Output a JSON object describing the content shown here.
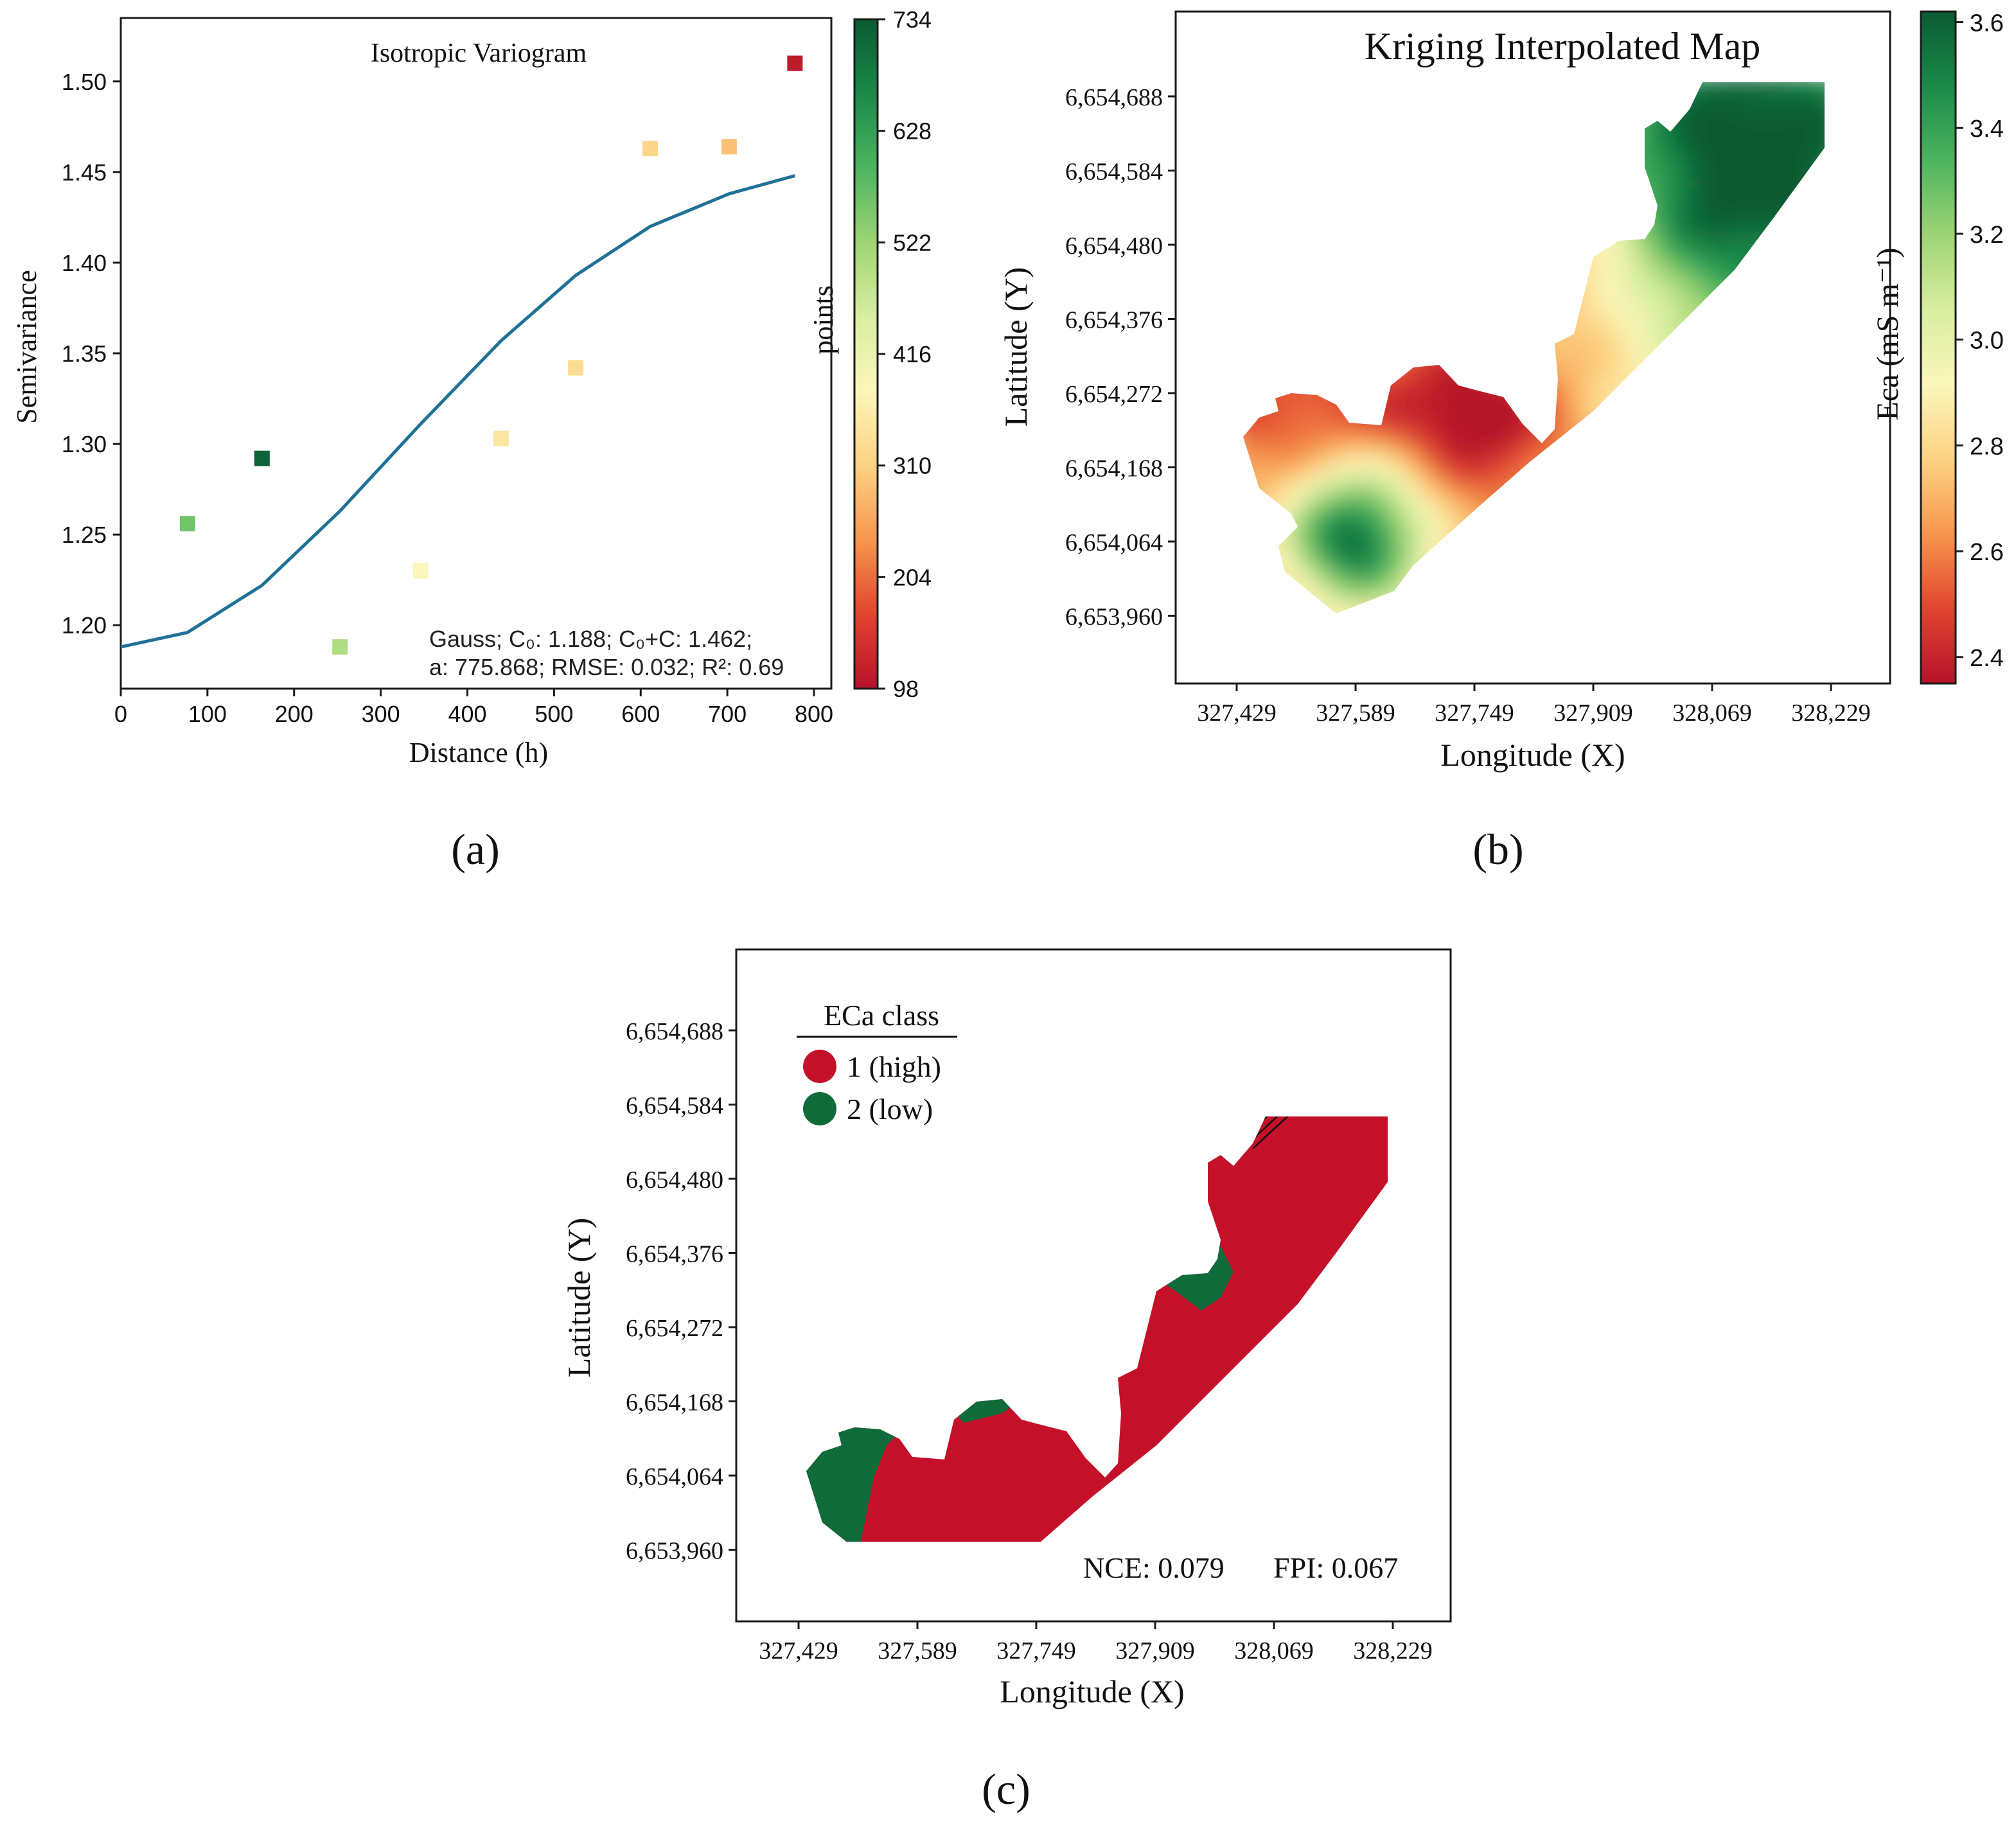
{
  "figure": {
    "panel_labels": [
      "(a)",
      "(b)",
      "(c)"
    ]
  },
  "colors": {
    "ramp": [
      "#b5122b",
      "#e0452f",
      "#f7964d",
      "#fcd283",
      "#fbf6ba",
      "#d9eea0",
      "#9ed474",
      "#4db45f",
      "#1a8a4a",
      "#0b5a32"
    ],
    "model_line": "#1f7196",
    "class_high": "#c5102a",
    "class_low": "#0f6b3a"
  },
  "chart_data": [
    {
      "id": "a",
      "type": "scatter",
      "title": "Isotropic Variogram",
      "xlabel": "Distance (h)",
      "ylabel": "Semivariance",
      "xlim": [
        0,
        820
      ],
      "ylim": [
        1.165,
        1.535
      ],
      "xticks": [
        0,
        100,
        200,
        300,
        400,
        500,
        600,
        700,
        800
      ],
      "yticks": [
        1.2,
        1.25,
        1.3,
        1.35,
        1.4,
        1.45,
        1.5
      ],
      "ytick_labels": [
        "1.20",
        "1.25",
        "1.30",
        "1.35",
        "1.40",
        "1.45",
        "1.50"
      ],
      "points": [
        {
          "x": 77,
          "y": 1.256,
          "count": 560
        },
        {
          "x": 163,
          "y": 1.292,
          "count": 720
        },
        {
          "x": 253,
          "y": 1.188,
          "count": 500
        },
        {
          "x": 346,
          "y": 1.23,
          "count": 380
        },
        {
          "x": 439,
          "y": 1.303,
          "count": 350
        },
        {
          "x": 525,
          "y": 1.342,
          "count": 330
        },
        {
          "x": 611,
          "y": 1.463,
          "count": 320
        },
        {
          "x": 702,
          "y": 1.464,
          "count": 290
        },
        {
          "x": 778,
          "y": 1.51,
          "count": 110
        }
      ],
      "model_line": {
        "name": "Gauss",
        "x": [
          0,
          77,
          163,
          253,
          346,
          439,
          525,
          611,
          702,
          778
        ],
        "y": [
          1.188,
          1.196,
          1.222,
          1.263,
          1.311,
          1.357,
          1.393,
          1.42,
          1.438,
          1.448
        ]
      },
      "colorbar": {
        "label": "points",
        "min": 98,
        "max": 734,
        "ticks": [
          "734",
          "628",
          "522",
          "416",
          "310",
          "204",
          "98"
        ]
      },
      "annotation_lines": [
        "Gauss; C₀: 1.188; C₀+C: 1.462;",
        "a: 775.868; RMSE: 0.032; R²: 0.69"
      ]
    },
    {
      "id": "b",
      "type": "heatmap",
      "title": "Kriging Interpolated Map",
      "xlabel": "Longitude  (X)",
      "ylabel": "Latitude  (Y)",
      "xticks": [
        "327,429",
        "327,589",
        "327,749",
        "327,909",
        "328,069",
        "328,229"
      ],
      "yticks": [
        "6,654,688",
        "6,654,584",
        "6,654,480",
        "6,654,376",
        "6,654,272",
        "6,654,168",
        "6,654,064",
        "6,653,960"
      ],
      "colorbar": {
        "label": "Eca (mS m⁻¹)",
        "min": 2.35,
        "max": 3.62,
        "ticks": [
          "3.6",
          "3.4",
          "3.2",
          "3.0",
          "2.8",
          "2.6",
          "2.4"
        ]
      }
    },
    {
      "id": "c",
      "type": "heatmap",
      "xlabel": "Longitude  (X)",
      "ylabel": "Latitude  (Y)",
      "xticks": [
        "327,429",
        "327,589",
        "327,749",
        "327,909",
        "328,069",
        "328,229"
      ],
      "yticks": [
        "6,654,688",
        "6,654,584",
        "6,654,480",
        "6,654,376",
        "6,654,272",
        "6,654,168",
        "6,654,064",
        "6,653,960"
      ],
      "legend": {
        "title": "ECa class",
        "position": "top-left",
        "items": [
          "1 (high)",
          "2 (low)"
        ]
      },
      "stats": {
        "nce": "NCE: 0.079",
        "fpi": "FPI: 0.067"
      }
    }
  ]
}
